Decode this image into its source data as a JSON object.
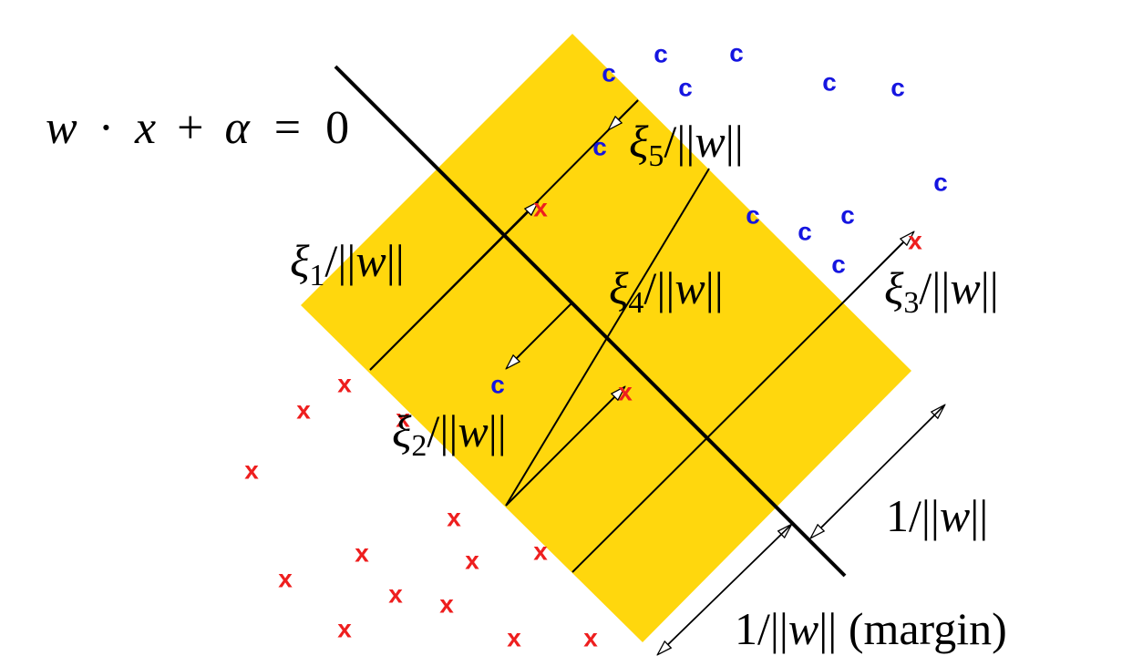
{
  "equation": {
    "w": "w",
    "dot": "·",
    "x": "x",
    "plus": "+",
    "alpha": "α",
    "eq": "=",
    "zero": "0"
  },
  "labels": {
    "xi": "ξ",
    "norm_open": "/||",
    "norm_close": "||",
    "w": "w",
    "xi1_sub": "1",
    "xi2_sub": "2",
    "xi3_sub": "3",
    "xi4_sub": "4",
    "xi5_sub": "5",
    "one_over": "1/||",
    "margin_suffix": " (margin)"
  },
  "point_labels": {
    "class_c": "c",
    "class_x": "x"
  },
  "colors": {
    "band": "#FFD70D",
    "class_c": "#1515E0",
    "class_x": "#EE1E1E",
    "ink": "#000000"
  }
}
